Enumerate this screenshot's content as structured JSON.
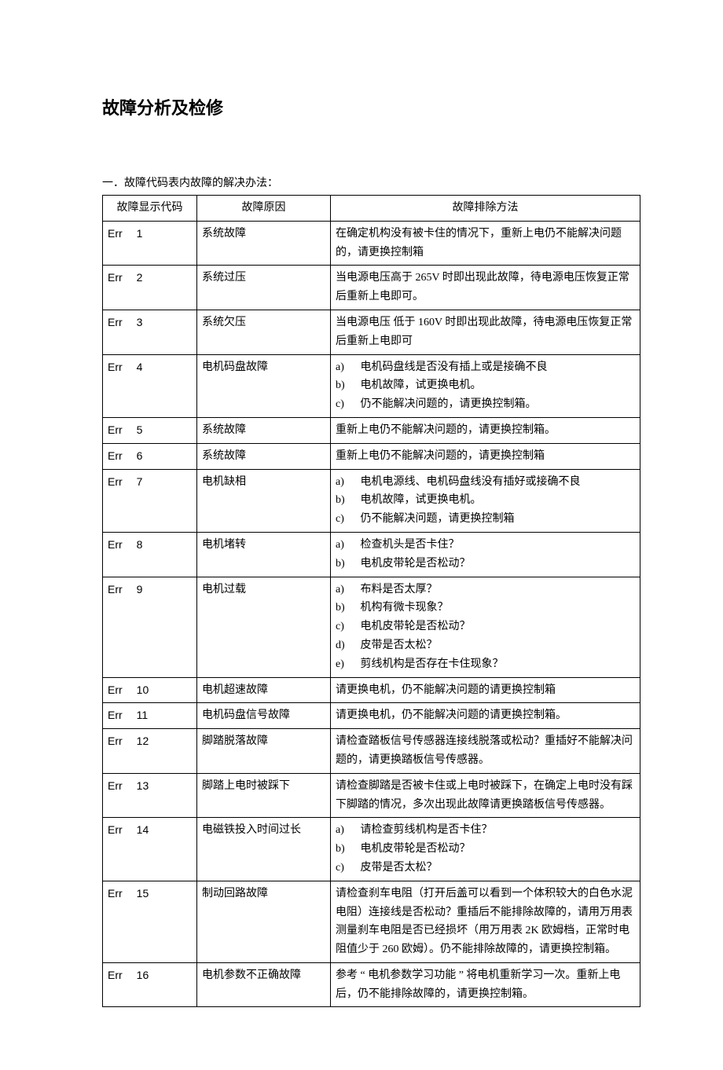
{
  "title": "故障分析及检修",
  "section_heading": "一．故障代码表内故障的解决办法：",
  "headers": {
    "code": "故障显示代码",
    "cause": "故障原因",
    "solution": "故障排除方法"
  },
  "rows": [
    {
      "code_err": "Err",
      "code_num": "1",
      "cause": "系统故障",
      "solution_lines": [
        "在确定机构没有被卡住的情况下，重新上电仍不能解决问题的，请更换控制箱"
      ]
    },
    {
      "code_err": "Err",
      "code_num": "2",
      "cause": "系统过压",
      "solution_lines": [
        "当电源电压高于  265V 时即出现此故障，待电源电压恢复正常后重新上电即可。"
      ]
    },
    {
      "code_err": "Err",
      "code_num": "3",
      "cause": "系统欠压",
      "solution_lines": [
        "当电源电压 低于 160V 时即出现此故障，待电源电压恢复正常后重新上电即可"
      ]
    },
    {
      "code_err": "Err",
      "code_num": "4",
      "cause": "电机码盘故障",
      "solution_items": [
        {
          "k": "a)",
          "t": "电机码盘线是否没有插上或是接确不良"
        },
        {
          "k": "b)",
          "t": "电机故障，试更换电机。"
        },
        {
          "k": "c)",
          "t": "仍不能解决问题的，请更换控制箱。"
        }
      ]
    },
    {
      "code_err": "Err",
      "code_num": "5",
      "cause": "系统故障",
      "solution_lines": [
        "重新上电仍不能解决问题的，请更换控制箱。"
      ]
    },
    {
      "code_err": "Err",
      "code_num": "6",
      "cause": "系统故障",
      "solution_lines": [
        "重新上电仍不能解决问题的，请更换控制箱"
      ]
    },
    {
      "code_err": "Err",
      "code_num": "7",
      "cause": "电机缺相",
      "solution_items": [
        {
          "k": "a)",
          "t": "电机电源线、电机码盘线没有插好或接确不良"
        },
        {
          "k": "b)",
          "t": "电机故障，试更换电机。"
        },
        {
          "k": "c)",
          "t": "仍不能解决问题，请更换控制箱"
        }
      ]
    },
    {
      "code_err": "Err",
      "code_num": "8",
      "cause": "电机堵转",
      "solution_items": [
        {
          "k": "a)",
          "t": "检查机头是否卡住？"
        },
        {
          "k": "b)",
          "t": "电机皮带轮是否松动？"
        }
      ]
    },
    {
      "code_err": "Err",
      "code_num": "9",
      "cause": "电机过载",
      "solution_items": [
        {
          "k": "a)",
          "t": "布料是否太厚？"
        },
        {
          "k": "b)",
          "t": "机构有微卡现象？"
        },
        {
          "k": "c)",
          "t": "电机皮带轮是否松动？"
        },
        {
          "k": "d)",
          "t": "皮带是否太松？"
        },
        {
          "k": "e)",
          "t": "剪线机构是否存在卡住现象？"
        }
      ]
    },
    {
      "code_err": "Err",
      "code_num": "10",
      "cause": "电机超速故障",
      "solution_lines": [
        "请更换电机，仍不能解决问题的请更换控制箱"
      ]
    },
    {
      "code_err": "Err",
      "code_num": "11",
      "cause": "电机码盘信号故障",
      "solution_lines": [
        "请更换电机，仍不能解决问题的请更换控制箱。"
      ]
    },
    {
      "code_err": "Err",
      "code_num": "12",
      "cause": "脚踏脱落故障",
      "solution_lines": [
        "请检查踏板信号传感器连接线脱落或松动？重插好不能解决问题的，请更换踏板信号传感器。"
      ]
    },
    {
      "code_err": "Err",
      "code_num": "13",
      "cause": "脚踏上电时被踩下",
      "solution_lines": [
        "请检查脚踏是否被卡住或上电时被踩下，在确定上电时没有踩下脚踏的情况，多次出现此故障请更换踏板信号传感器。"
      ]
    },
    {
      "code_err": "Err",
      "code_num": "14",
      "cause": "电磁铁投入时间过长",
      "solution_items": [
        {
          "k": "a)",
          "t": "请检查剪线机构是否卡住？"
        },
        {
          "k": "b)",
          "t": "电机皮带轮是否松动？"
        },
        {
          "k": "c)",
          "t": "皮带是否太松？"
        }
      ]
    },
    {
      "code_err": "Err",
      "code_num": "15",
      "cause": "制动回路故障",
      "solution_lines": [
        "请检查刹车电阻（打开后盖可以看到一个体积较大的白色水泥电阻）连接线是否松动？重插后不能排除故障的，请用万用表测量刹车电阻是否已经损坏（用万用表 2K 欧姆档，正常时电阻值少于    260 欧姆）。仍不能排除故障的，请更换控制箱。"
      ]
    },
    {
      "code_err": "Err",
      "code_num": "16",
      "cause": "电机参数不正确故障",
      "solution_lines": [
        "参考 “ 电机参数学习功能  ” 将电机重新学习一次。重新上电后，仍不能排除故障的，请更换控制箱。"
      ]
    }
  ]
}
